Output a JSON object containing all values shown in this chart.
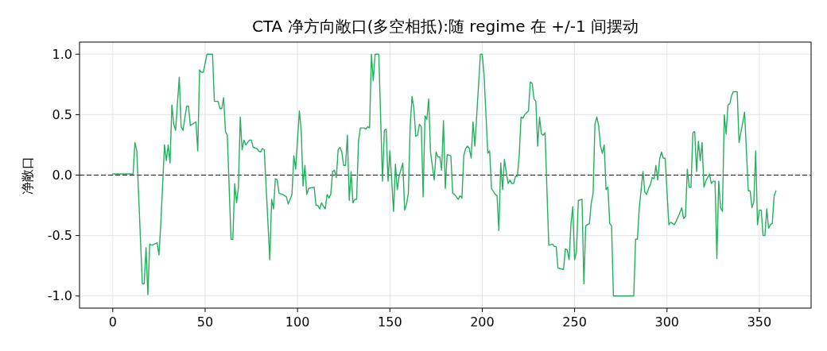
{
  "chart_data": {
    "type": "line",
    "title": "CTA 净方向敞口(多空相抵):随 regime 在 +/-1 间摆动",
    "ylabel": "净敞口",
    "xlim": [
      -18,
      378
    ],
    "ylim": [
      -1.1,
      1.1
    ],
    "xticks": [
      0,
      50,
      100,
      150,
      200,
      250,
      300,
      350
    ],
    "yticks": [
      {
        "value": 1,
        "label": "1.0"
      },
      {
        "value": 0.5,
        "label": "0.5"
      },
      {
        "value": 0,
        "label": "0.0"
      },
      {
        "value": -0.5,
        "label": "-0.5"
      },
      {
        "value": -1,
        "label": "-1.0"
      }
    ],
    "grid": true,
    "marker": "none",
    "line_style": "solid",
    "ref_lines": [
      {
        "axis": "y",
        "value": 0,
        "color": "#000000",
        "line_style": "dashed"
      }
    ],
    "series": [
      {
        "color": "#27ae60",
        "x": [
          0,
          11,
          12,
          13,
          16,
          17,
          18,
          19,
          20,
          21,
          24,
          25,
          26,
          28,
          29,
          30,
          31,
          32,
          33,
          34,
          36,
          37,
          38,
          40,
          41,
          42,
          45,
          46,
          47,
          48,
          49,
          51,
          54,
          55,
          57,
          58,
          59,
          60,
          61,
          62,
          64,
          65,
          66,
          67,
          68,
          69,
          70,
          71,
          72,
          74,
          75,
          76,
          78,
          79,
          80,
          81,
          82,
          85,
          86,
          87,
          88,
          89,
          90,
          92,
          94,
          95,
          97,
          98,
          99,
          101,
          102,
          103,
          104,
          105,
          106,
          109,
          110,
          111,
          112,
          113,
          115,
          116,
          117,
          118,
          119,
          120,
          121,
          122,
          123,
          124,
          125,
          126,
          127,
          128,
          129,
          130,
          131,
          132,
          133,
          134,
          136,
          137,
          138,
          139,
          140,
          141,
          142,
          144,
          146,
          147,
          148,
          149,
          150,
          152,
          153,
          154,
          155,
          157,
          158,
          159,
          160,
          161,
          162,
          163,
          164,
          165,
          166,
          167,
          168,
          169,
          170,
          171,
          172,
          174,
          175,
          176,
          177,
          178,
          179,
          180,
          181,
          183,
          184,
          185,
          187,
          188,
          189,
          190,
          191,
          192,
          193,
          194,
          195,
          196,
          199,
          200,
          201,
          203,
          204,
          205,
          207,
          208,
          209,
          210,
          211,
          212,
          213,
          214,
          215,
          216,
          217,
          218,
          219,
          220,
          221,
          222,
          223,
          225,
          226,
          227,
          228,
          229,
          230,
          231,
          232,
          233,
          234,
          236,
          238,
          239,
          240,
          241,
          244,
          245,
          246,
          247,
          248,
          249,
          250,
          251,
          252,
          254,
          255,
          256,
          258,
          259,
          260,
          261,
          262,
          263,
          264,
          265,
          266,
          267,
          268,
          269,
          270,
          271,
          282,
          283,
          284,
          285,
          287,
          288,
          289,
          290,
          291,
          292,
          293,
          294,
          295,
          296,
          297,
          298,
          299,
          301,
          302,
          304,
          305,
          307,
          308,
          309,
          310,
          311,
          312,
          313,
          314,
          315,
          316,
          317,
          318,
          319,
          320,
          321,
          323,
          324,
          325,
          326,
          327,
          328,
          329,
          330,
          331,
          332,
          333,
          334,
          335,
          336,
          338,
          339,
          342,
          344,
          345,
          346,
          347,
          348,
          349,
          350,
          351,
          352,
          353,
          354,
          355,
          356,
          357,
          358,
          359
        ],
        "values": [
          0.01,
          0.01,
          0.27,
          0.2,
          -0.9,
          -0.9,
          -0.6,
          -0.99,
          -0.57,
          -0.58,
          -0.56,
          -0.66,
          -0.4,
          0.25,
          0.12,
          0.25,
          0.1,
          0.58,
          0.42,
          0.37,
          0.81,
          0.4,
          0.37,
          0.57,
          0.57,
          0.41,
          0.44,
          0.2,
          0.87,
          0.85,
          0.85,
          1.0,
          1.0,
          0.61,
          0.61,
          0.55,
          0.55,
          0.64,
          0.36,
          0.33,
          -0.53,
          -0.53,
          -0.07,
          -0.23,
          -0.1,
          0.48,
          0.21,
          0.29,
          0.25,
          0.29,
          0.29,
          0.23,
          0.22,
          0.2,
          0.19,
          0.22,
          0.21,
          -0.7,
          -0.2,
          -0.28,
          -0.03,
          -0.04,
          -0.15,
          -0.16,
          -0.18,
          -0.24,
          -0.16,
          0.16,
          0.05,
          0.53,
          0.37,
          -0.09,
          0.08,
          -0.16,
          -0.11,
          -0.1,
          -0.25,
          -0.25,
          -0.28,
          -0.23,
          -0.28,
          -0.16,
          -0.19,
          -0.16,
          0.03,
          0.04,
          -0.02,
          0.21,
          0.23,
          0.19,
          0.08,
          0.08,
          0.33,
          -0.21,
          0.03,
          -0.23,
          -0.2,
          -0.2,
          0.28,
          0.39,
          0.39,
          0.38,
          0.4,
          0.39,
          1.0,
          0.78,
          1.0,
          1.0,
          -0.05,
          0.37,
          0.38,
          -0.05,
          0.2,
          -0.3,
          0.09,
          -0.12,
          -0.01,
          0.1,
          -0.29,
          -0.24,
          -0.15,
          0.41,
          0.65,
          0.55,
          0.32,
          0.33,
          0.42,
          0.4,
          -0.18,
          0.49,
          0.46,
          0.63,
          0.19,
          -0.04,
          0.19,
          0.15,
          0.15,
          0.04,
          0.45,
          -0.11,
          0.17,
          0.16,
          -0.15,
          -0.16,
          -0.2,
          -0.17,
          -0.19,
          0.16,
          0.22,
          0.24,
          0.22,
          0.14,
          0.44,
          0.24,
          1.0,
          1.0,
          0.82,
          0.18,
          0.2,
          -0.11,
          -0.16,
          -0.17,
          -0.46,
          0.1,
          -0.12,
          0.13,
          0.02,
          -0.07,
          -0.04,
          -0.07,
          -0.07,
          -0.01,
          -0.01,
          0.16,
          0.48,
          0.47,
          0.5,
          0.53,
          0.77,
          0.76,
          0.63,
          0.61,
          0.24,
          0.48,
          0.34,
          0.33,
          0.35,
          -0.58,
          -0.57,
          -0.59,
          -0.59,
          -0.77,
          -0.78,
          -0.61,
          -0.62,
          -0.7,
          -0.41,
          -0.26,
          -0.7,
          -0.63,
          -0.21,
          -0.2,
          -0.9,
          -0.42,
          -0.4,
          -0.23,
          -0.15,
          0.42,
          0.48,
          0.41,
          0.24,
          0.18,
          0.25,
          -0.12,
          -0.1,
          -0.4,
          -0.42,
          -1.0,
          -1.0,
          -0.53,
          -0.53,
          -0.27,
          0.03,
          -0.14,
          -0.16,
          -0.11,
          -0.08,
          -0.02,
          -0.03,
          0.08,
          -0.04,
          0.13,
          0.19,
          0.14,
          0.14,
          -0.41,
          -0.39,
          -0.41,
          -0.38,
          -0.31,
          -0.27,
          -0.36,
          -0.34,
          0.05,
          -0.1,
          -0.1,
          0.35,
          0.36,
          0.03,
          0.28,
          0.12,
          0.27,
          -0.1,
          -0.05,
          0.01,
          -0.07,
          -0.05,
          -0.05,
          -0.69,
          -0.05,
          -0.27,
          -0.3,
          0.5,
          0.34,
          0.58,
          0.59,
          0.66,
          0.69,
          0.69,
          0.27,
          0.52,
          -0.13,
          -0.13,
          -0.27,
          -0.22,
          0.2,
          -0.41,
          -0.29,
          -0.29,
          -0.5,
          -0.5,
          -0.28,
          -0.44,
          -0.41,
          -0.4,
          -0.17,
          -0.13
        ]
      }
    ]
  }
}
